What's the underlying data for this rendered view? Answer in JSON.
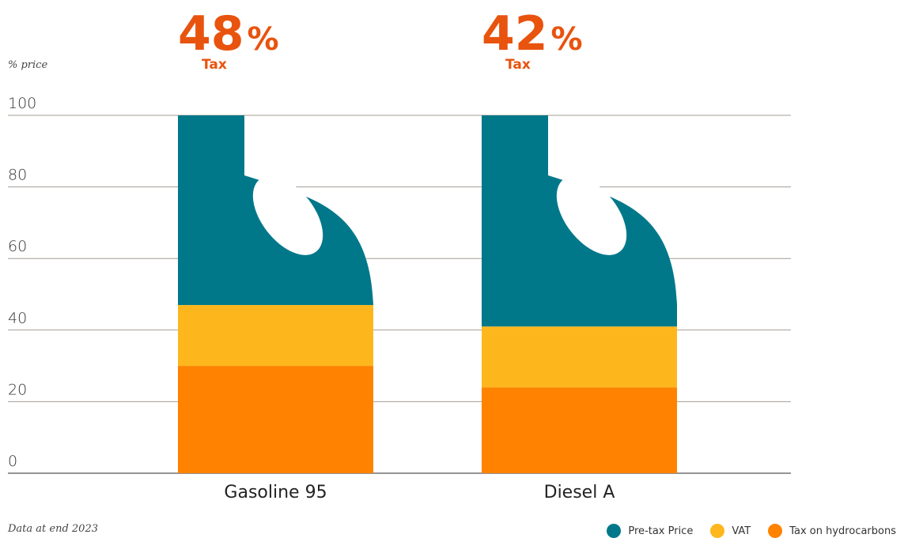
{
  "chart_data": {
    "type": "bar",
    "stacked": true,
    "ylabel": "% price",
    "ylim": [
      0,
      100
    ],
    "yticks": [
      0,
      20,
      40,
      60,
      80,
      100
    ],
    "grid": true,
    "categories": [
      "Gasoline 95",
      "Diesel A"
    ],
    "series": [
      {
        "name": "Tax on hydrocarbons",
        "color": "#FF8200",
        "values": [
          30,
          24
        ]
      },
      {
        "name": "VAT",
        "color": "#FDB71D",
        "values": [
          17,
          17
        ]
      },
      {
        "name": "Pre-tax Price",
        "color": "#00788A",
        "values": [
          53,
          59
        ]
      }
    ],
    "annotations": [
      {
        "category": "Gasoline 95",
        "value": "48",
        "unit": "%",
        "label": "Tax"
      },
      {
        "category": "Diesel A",
        "value": "42",
        "unit": "%",
        "label": "Tax"
      }
    ],
    "footnote": "Data at end 2023",
    "legend_order": [
      "Pre-tax Price",
      "VAT",
      "Tax on hydrocarbons"
    ],
    "legend_position": "bottom-right"
  }
}
